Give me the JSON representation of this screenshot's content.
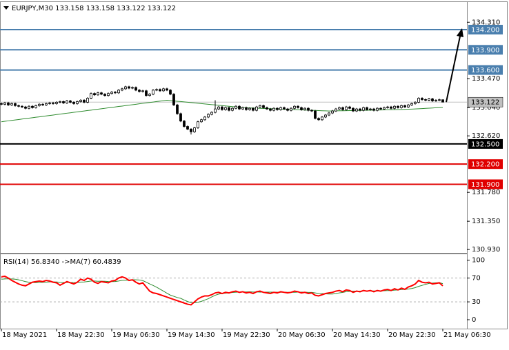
{
  "chart_data": [
    {
      "type": "candlestick",
      "title": "EURJPY,M30  133.158 133.158 133.122 133.122",
      "categories": [
        "18 May 2021",
        null,
        null,
        null,
        null,
        null,
        null,
        null,
        null,
        null,
        null,
        null,
        null,
        null,
        null,
        null,
        "18 May 22:30",
        null,
        null,
        null,
        null,
        null,
        null,
        null,
        null,
        null,
        null,
        null,
        null,
        null,
        null,
        null,
        "19 May 06:30",
        null,
        null,
        null,
        null,
        null,
        null,
        null,
        null,
        null,
        null,
        null,
        null,
        null,
        null,
        null,
        "19 May 14:30",
        null,
        null,
        null,
        null,
        null,
        null,
        null,
        null,
        null,
        null,
        null,
        null,
        null,
        null,
        null,
        "19 May 22:30",
        null,
        null,
        null,
        null,
        null,
        null,
        null,
        null,
        null,
        null,
        null,
        null,
        null,
        null,
        null,
        "20 May 06:30",
        null,
        null,
        null,
        null,
        null,
        null,
        null,
        null,
        null,
        null,
        null,
        null,
        null,
        null,
        null,
        "20 May 14:30",
        null,
        null,
        null,
        null,
        null,
        null,
        null,
        null,
        null,
        null,
        null,
        null,
        null,
        null,
        null,
        "20 May 22:30",
        null,
        null,
        null,
        null,
        null,
        null,
        null,
        null,
        null,
        null,
        null,
        null,
        null,
        null,
        null,
        "21 May 06:30"
      ],
      "open": [
        133.1,
        133.09,
        133.11,
        133.08,
        133.1,
        133.07,
        133.06,
        133.05,
        133.03,
        133.06,
        133.04,
        133.07,
        133.09,
        133.08,
        133.1,
        133.11,
        133.1,
        133.12,
        133.13,
        133.11,
        133.14,
        133.12,
        133.1,
        133.13,
        133.15,
        133.12,
        133.18,
        133.25,
        133.23,
        133.26,
        133.24,
        133.22,
        133.25,
        133.27,
        133.26,
        133.3,
        133.32,
        133.35,
        133.33,
        133.34,
        133.3,
        133.28,
        133.29,
        133.22,
        133.24,
        133.3,
        133.31,
        133.29,
        133.32,
        133.3,
        133.24,
        133.08,
        132.95,
        132.84,
        132.76,
        132.72,
        132.68,
        132.74,
        132.83,
        132.86,
        132.9,
        132.94,
        132.97,
        133.02,
        133.05,
        133.01,
        133.04,
        133.0,
        133.03,
        133.06,
        133.02,
        133.04,
        133.01,
        133.03,
        133.0,
        133.05,
        133.07,
        133.04,
        133.02,
        133.0,
        133.03,
        133.01,
        133.04,
        133.02,
        133.0,
        133.03,
        133.06,
        133.04,
        133.01,
        133.03,
        133.0,
        132.99,
        132.88,
        132.86,
        132.9,
        132.93,
        132.96,
        132.99,
        133.02,
        133.04,
        133.01,
        133.05,
        133.03,
        132.99,
        133.02,
        133.0,
        133.04,
        133.01,
        133.02,
        133.0,
        133.03,
        133.02,
        133.04,
        133.05,
        133.03,
        133.06,
        133.04,
        133.07,
        133.05,
        133.08,
        133.1,
        133.12,
        133.18,
        133.16,
        133.15,
        133.17,
        133.14,
        133.15,
        133.158
      ],
      "high": [
        133.115,
        133.125,
        133.125,
        133.115,
        133.115,
        133.085,
        133.075,
        133.065,
        133.075,
        133.075,
        133.085,
        133.105,
        133.105,
        133.115,
        133.125,
        133.125,
        133.135,
        133.145,
        133.145,
        133.155,
        133.155,
        133.135,
        133.145,
        133.165,
        133.165,
        133.195,
        133.265,
        133.265,
        133.275,
        133.275,
        133.255,
        133.265,
        133.285,
        133.285,
        133.315,
        133.335,
        133.365,
        133.365,
        133.355,
        133.355,
        133.315,
        133.305,
        133.305,
        133.255,
        133.315,
        133.325,
        133.325,
        133.335,
        133.335,
        133.315,
        133.255,
        133.095,
        132.965,
        132.855,
        132.775,
        132.735,
        132.755,
        132.845,
        132.875,
        132.915,
        132.955,
        132.985,
        133.15,
        133.065,
        133.065,
        133.055,
        133.055,
        133.045,
        133.075,
        133.075,
        133.055,
        133.055,
        133.045,
        133.045,
        133.065,
        133.085,
        133.085,
        133.055,
        133.035,
        133.045,
        133.045,
        133.055,
        133.055,
        133.035,
        133.045,
        133.075,
        133.075,
        133.055,
        133.045,
        133.045,
        133.015,
        133.005,
        132.895,
        132.915,
        132.945,
        132.975,
        133.005,
        133.035,
        133.055,
        133.055,
        133.065,
        133.065,
        133.045,
        133.035,
        133.035,
        133.055,
        133.055,
        133.035,
        133.035,
        133.045,
        133.045,
        133.055,
        133.065,
        133.065,
        133.075,
        133.075,
        133.085,
        133.085,
        133.095,
        133.115,
        133.135,
        133.195,
        133.195,
        133.175,
        133.185,
        133.185,
        133.165,
        133.173,
        133.158
      ],
      "low": [
        133.075,
        133.075,
        133.065,
        133.065,
        133.055,
        133.045,
        133.035,
        133.015,
        133.015,
        133.025,
        133.025,
        133.055,
        133.065,
        133.065,
        133.085,
        133.085,
        133.085,
        133.105,
        133.095,
        133.095,
        133.105,
        133.085,
        133.085,
        133.115,
        133.105,
        133.105,
        133.165,
        133.215,
        133.215,
        133.225,
        133.205,
        133.205,
        133.235,
        133.245,
        133.245,
        133.285,
        133.305,
        133.315,
        133.315,
        133.285,
        133.265,
        133.265,
        133.205,
        133.205,
        133.225,
        133.285,
        133.275,
        133.275,
        133.285,
        133.225,
        133.065,
        132.935,
        132.825,
        132.745,
        132.705,
        132.64,
        132.665,
        132.725,
        132.815,
        132.845,
        132.885,
        132.925,
        132.955,
        133.005,
        132.995,
        132.995,
        132.985,
        132.985,
        133.015,
        133.005,
        133.005,
        132.995,
        132.995,
        132.985,
        132.985,
        133.035,
        133.025,
        133.005,
        132.985,
        132.985,
        132.995,
        132.995,
        133.005,
        132.985,
        132.985,
        133.015,
        133.025,
        132.995,
        132.995,
        132.985,
        132.975,
        132.865,
        132.845,
        132.845,
        132.885,
        132.915,
        132.945,
        132.975,
        133.005,
        132.995,
        132.995,
        133.015,
        132.975,
        132.975,
        132.985,
        132.985,
        132.995,
        132.995,
        132.985,
        132.985,
        133.005,
        133.005,
        133.025,
        133.015,
        133.015,
        133.025,
        133.025,
        133.035,
        133.035,
        133.065,
        133.085,
        133.105,
        133.145,
        133.135,
        133.135,
        133.125,
        133.125,
        133.135,
        133.122
      ],
      "close": [
        133.09,
        133.11,
        133.08,
        133.1,
        133.07,
        133.06,
        133.05,
        133.03,
        133.06,
        133.04,
        133.07,
        133.09,
        133.08,
        133.1,
        133.11,
        133.1,
        133.12,
        133.13,
        133.11,
        133.14,
        133.12,
        133.1,
        133.13,
        133.15,
        133.12,
        133.18,
        133.25,
        133.23,
        133.26,
        133.24,
        133.22,
        133.25,
        133.27,
        133.26,
        133.3,
        133.32,
        133.35,
        133.33,
        133.34,
        133.3,
        133.28,
        133.29,
        133.22,
        133.24,
        133.3,
        133.31,
        133.29,
        133.32,
        133.3,
        133.24,
        133.08,
        132.95,
        132.84,
        132.76,
        132.72,
        132.68,
        132.74,
        132.83,
        132.86,
        132.9,
        132.94,
        132.97,
        133.02,
        133.05,
        133.01,
        133.04,
        133.0,
        133.03,
        133.06,
        133.02,
        133.04,
        133.01,
        133.03,
        133.0,
        133.05,
        133.07,
        133.04,
        133.02,
        133.0,
        133.03,
        133.01,
        133.04,
        133.02,
        133.0,
        133.03,
        133.06,
        133.04,
        133.01,
        133.03,
        133.0,
        132.99,
        132.88,
        132.86,
        132.9,
        132.93,
        132.96,
        132.99,
        133.02,
        133.04,
        133.01,
        133.05,
        133.03,
        132.99,
        133.02,
        133.0,
        133.04,
        133.01,
        133.02,
        133.0,
        133.03,
        133.02,
        133.04,
        133.05,
        133.03,
        133.06,
        133.04,
        133.07,
        133.05,
        133.08,
        133.1,
        133.12,
        133.18,
        133.16,
        133.15,
        133.17,
        133.14,
        133.15,
        133.158,
        133.122
      ],
      "color": "#000000",
      "lines": [
        {
          "color": "#2e8b2e",
          "values": [
            132.83,
            132.837,
            132.843,
            132.85,
            132.857,
            132.863,
            132.87,
            132.877,
            132.883,
            132.89,
            132.897,
            132.903,
            132.91,
            132.917,
            132.923,
            132.93,
            132.937,
            132.943,
            132.95,
            132.957,
            132.963,
            132.97,
            132.977,
            132.983,
            132.99,
            132.997,
            133.003,
            133.01,
            133.017,
            133.023,
            133.03,
            133.037,
            133.043,
            133.05,
            133.057,
            133.063,
            133.07,
            133.077,
            133.083,
            133.09,
            133.097,
            133.103,
            133.11,
            133.117,
            133.123,
            133.13,
            133.137,
            133.143,
            133.15,
            133.145,
            133.14,
            133.135,
            133.13,
            133.125,
            133.12,
            133.115,
            133.11,
            133.105,
            133.1,
            133.095,
            133.09,
            133.085,
            133.08,
            133.075,
            133.07,
            133.065,
            133.06,
            133.055,
            133.05,
            133.045,
            133.04,
            133.038,
            133.036,
            133.034,
            133.032,
            133.03,
            133.028,
            133.026,
            133.024,
            133.022,
            133.02,
            133.018,
            133.016,
            133.014,
            133.012,
            133.01,
            133.008,
            133.006,
            133.004,
            133.002,
            133.0,
            132.998,
            132.996,
            132.994,
            132.992,
            132.99,
            132.991,
            132.992,
            132.993,
            132.994,
            132.995,
            132.996,
            132.997,
            132.998,
            132.999,
            133.0,
            133.001,
            133.002,
            133.003,
            133.004,
            133.005,
            133.006,
            133.007,
            133.008,
            133.009,
            133.01,
            133.012,
            133.014,
            133.016,
            133.018,
            133.02,
            133.023,
            133.026,
            133.029,
            133.032,
            133.035,
            133.038,
            133.041,
            133.044
          ]
        }
      ],
      "ylim": [
        130.88,
        134.61
      ],
      "yticks": [
        {
          "value": 134.31,
          "label": "134.310"
        },
        {
          "value": 133.47,
          "label": "133.470"
        },
        {
          "value": 133.04,
          "label": "133.040"
        },
        {
          "value": 132.62,
          "label": "132.620"
        },
        {
          "value": 131.78,
          "label": "131.780"
        },
        {
          "value": 131.35,
          "label": "131.350"
        },
        {
          "value": 130.93,
          "label": "130.930"
        }
      ],
      "levels": [
        {
          "value": 134.2,
          "label": "134.200",
          "color": "#4a7fae"
        },
        {
          "value": 133.9,
          "label": "133.900",
          "color": "#4a7fae"
        },
        {
          "value": 133.6,
          "label": "133.600",
          "color": "#4a7fae"
        },
        {
          "value": 132.5,
          "label": "132.500",
          "color": "#000000"
        },
        {
          "value": 132.2,
          "label": "132.200",
          "color": "#e00000"
        },
        {
          "value": 131.9,
          "label": "131.900",
          "color": "#e00000"
        }
      ],
      "last_price": {
        "value": 133.122,
        "label": "133.122",
        "color": "#c0c0c0"
      }
    },
    {
      "type": "line",
      "title": "RSI(14) 56.8340  ->MA(7) 60.4839",
      "series": [
        {
          "color": "#ff0000",
          "values": [
            72,
            73,
            70,
            66,
            63,
            60,
            58,
            57,
            60,
            63,
            64,
            65,
            64,
            66,
            65,
            63,
            62,
            58,
            61,
            64,
            62,
            60,
            63,
            68,
            66,
            70,
            68,
            63,
            61,
            64,
            63,
            62,
            65,
            66,
            70,
            72,
            70,
            66,
            67,
            63,
            60,
            62,
            55,
            48,
            45,
            44,
            42,
            40,
            38,
            36,
            34,
            32,
            30,
            28,
            26,
            25,
            30,
            35,
            38,
            40,
            40,
            42,
            45,
            46,
            44,
            46,
            45,
            47,
            48,
            46,
            47,
            45,
            46,
            44,
            47,
            48,
            46,
            45,
            44,
            46,
            45,
            47,
            46,
            45,
            46,
            48,
            47,
            45,
            46,
            44,
            45,
            41,
            40,
            42,
            44,
            45,
            46,
            48,
            49,
            47,
            50,
            49,
            46,
            48,
            47,
            49,
            48,
            49,
            47,
            49,
            48,
            50,
            51,
            49,
            52,
            50,
            53,
            51,
            55,
            57,
            60,
            66,
            63,
            62,
            63,
            60,
            61,
            62,
            56.834
          ]
        },
        {
          "color": "#2e8b2e",
          "values": [
            68,
            68.5,
            68.7,
            68.5,
            68,
            67,
            65.5,
            64,
            63,
            62.5,
            62.3,
            62.5,
            62.8,
            63.2,
            63.5,
            63.6,
            63.4,
            62.8,
            62.6,
            62.6,
            62.6,
            62.4,
            62.6,
            63.3,
            63.4,
            64.2,
            65,
            65,
            64.5,
            64.7,
            64.5,
            64.1,
            64,
            64.2,
            65,
            66.1,
            66.3,
            66.3,
            67.2,
            67,
            66.8,
            65.7,
            63.1,
            60.2,
            57.6,
            54.7,
            51.3,
            48,
            44.6,
            41.3,
            39.3,
            37.3,
            35.9,
            33.1,
            30.6,
            28.7,
            28.6,
            29.3,
            30.9,
            33.1,
            35.3,
            38.3,
            41.1,
            43,
            43.9,
            44.6,
            45.1,
            45.7,
            46.2,
            46.4,
            46.8,
            46.6,
            46.9,
            46.5,
            46.6,
            46.3,
            46.4,
            46.3,
            46.3,
            46.3,
            46.2,
            46.1,
            46.3,
            46.1,
            46.1,
            46.1,
            46.3,
            46.3,
            46.4,
            45.9,
            45.9,
            45.1,
            44.1,
            43.9,
            43.4,
            43.1,
            43.1,
            43.9,
            45.1,
            45.9,
            47,
            47.7,
            47.9,
            48.1,
            48.1,
            48.3,
            48.3,
            48.1,
            48.4,
            48.1,
            48.3,
            48.6,
            48.9,
            49,
            49.7,
            50,
            50.7,
            51,
            51.6,
            52.4,
            53.9,
            56,
            57.7,
            59.4,
            60.9,
            61.6,
            62,
            62.4,
            60.4839
          ]
        }
      ],
      "ylim": [
        -15,
        110
      ],
      "yticks": [
        0,
        30,
        70,
        100
      ],
      "levels": [
        30,
        70
      ]
    }
  ]
}
